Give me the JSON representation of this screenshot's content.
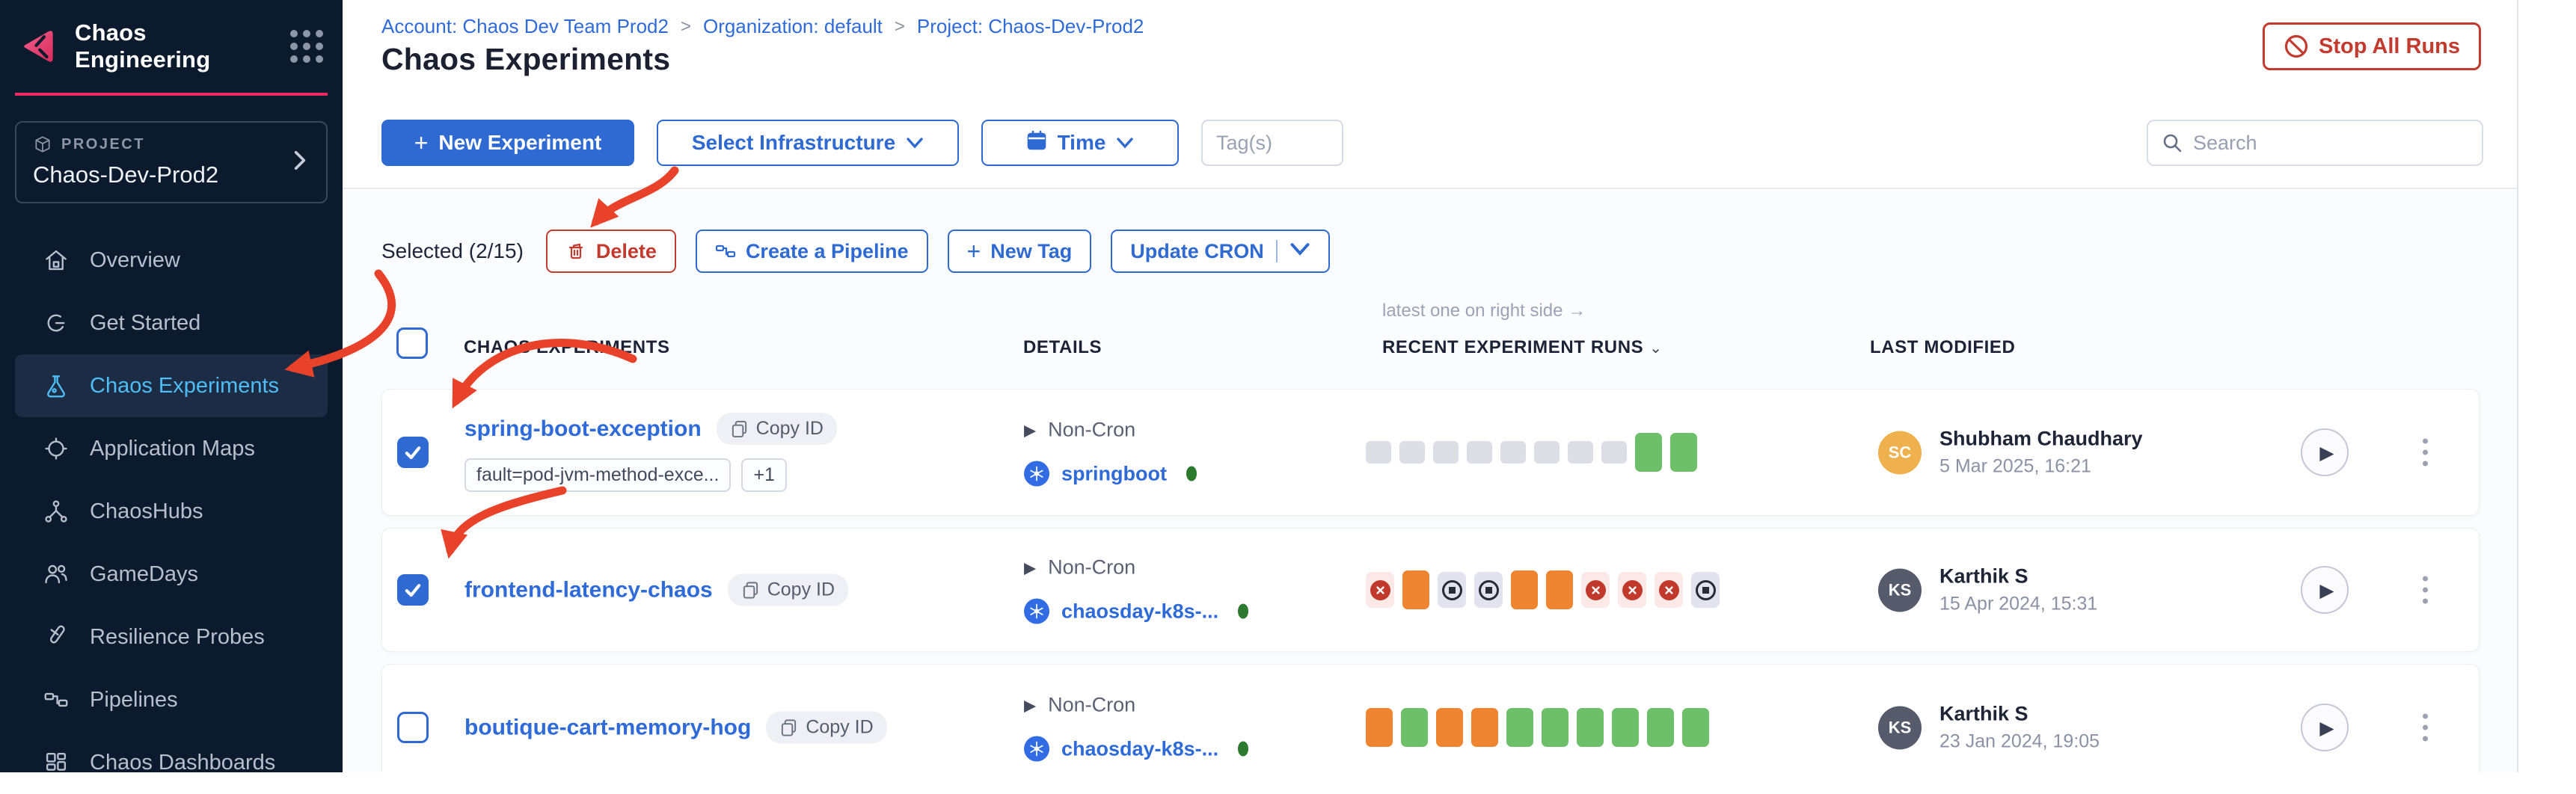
{
  "colors": {
    "primary_blue": "#2E6AD1",
    "link_blue": "#2F6BD8",
    "active_nav_blue": "#4FBDF5",
    "brand_pink": "#EE2A62",
    "danger_red": "#C23B2E",
    "annotation_red": "#E8432A",
    "run_green": "#6DBF6A",
    "run_orange": "#EF8531",
    "run_gray": "#DCDEE6",
    "status_green": "#2C7A2E",
    "sidebar_bg": "#0B1B2D"
  },
  "sidebar": {
    "app_title": "Chaos Engineering",
    "project": {
      "label": "PROJECT",
      "name": "Chaos-Dev-Prod2"
    },
    "items": [
      {
        "label": "Overview",
        "icon": "home",
        "active": false
      },
      {
        "label": "Get Started",
        "icon": "get-started",
        "active": false
      },
      {
        "label": "Chaos Experiments",
        "icon": "flask",
        "active": true
      },
      {
        "label": "Application Maps",
        "icon": "app-maps",
        "active": false
      },
      {
        "label": "ChaosHubs",
        "icon": "hub",
        "active": false
      },
      {
        "label": "GameDays",
        "icon": "people",
        "active": false
      },
      {
        "label": "Resilience Probes",
        "icon": "probe",
        "active": false
      },
      {
        "label": "Pipelines",
        "icon": "pipeline",
        "active": false
      },
      {
        "label": "Chaos Dashboards",
        "icon": "dashboard",
        "active": false
      }
    ]
  },
  "header": {
    "breadcrumbs": [
      "Account: Chaos Dev Team Prod2",
      "Organization: default",
      "Project: Chaos-Dev-Prod2"
    ],
    "page_title": "Chaos Experiments",
    "stop_all_runs": "Stop All Runs"
  },
  "toolbar": {
    "new_experiment": "New Experiment",
    "select_infrastructure": "Select Infrastructure",
    "time": "Time",
    "tags_placeholder": "Tag(s)",
    "search_placeholder": "Search"
  },
  "selection_bar": {
    "selected_text": "Selected (2/15)",
    "delete": "Delete",
    "create_pipeline": "Create a Pipeline",
    "new_tag": "New Tag",
    "update_cron": "Update CRON"
  },
  "table": {
    "runs_note": "latest one on right side →",
    "columns": {
      "experiments": "CHAOS EXPERIMENTS",
      "details": "DETAILS",
      "runs": "RECENT EXPERIMENT RUNS",
      "modified": "LAST MODIFIED"
    },
    "rows": [
      {
        "name": "spring-boot-exception",
        "checked": true,
        "copy_label": "Copy ID",
        "tags": [
          "fault=pod-jvm-method-exce...",
          "+1"
        ],
        "schedule": "Non-Cron",
        "infrastructure": "springboot",
        "runs": [
          "gray",
          "gray",
          "gray",
          "gray",
          "gray",
          "gray",
          "gray",
          "gray",
          "green",
          "green"
        ],
        "modified": {
          "initials": "SC",
          "name": "Shubham Chaudhary",
          "date": "5 Mar 2025, 16:21",
          "avatar_color": "#EEB14D"
        }
      },
      {
        "name": "frontend-latency-chaos",
        "checked": true,
        "copy_label": "Copy ID",
        "tags": [],
        "schedule": "Non-Cron",
        "infrastructure": "chaosday-k8s-...",
        "runs": [
          "failed",
          "orange",
          "stopped",
          "stopped",
          "orange",
          "orange",
          "failed",
          "failed",
          "failed",
          "stopped"
        ],
        "modified": {
          "initials": "KS",
          "name": "Karthik S",
          "date": "15 Apr 2024, 15:31",
          "avatar_color": "#555B6B"
        }
      },
      {
        "name": "boutique-cart-memory-hog",
        "checked": false,
        "copy_label": "Copy ID",
        "tags": [],
        "schedule": "Non-Cron",
        "infrastructure": "chaosday-k8s-...",
        "runs": [
          "orange",
          "green",
          "orange",
          "orange",
          "green",
          "green",
          "green",
          "green",
          "green",
          "green"
        ],
        "modified": {
          "initials": "KS",
          "name": "Karthik S",
          "date": "23 Jan 2024, 19:05",
          "avatar_color": "#555B6B"
        }
      }
    ]
  }
}
